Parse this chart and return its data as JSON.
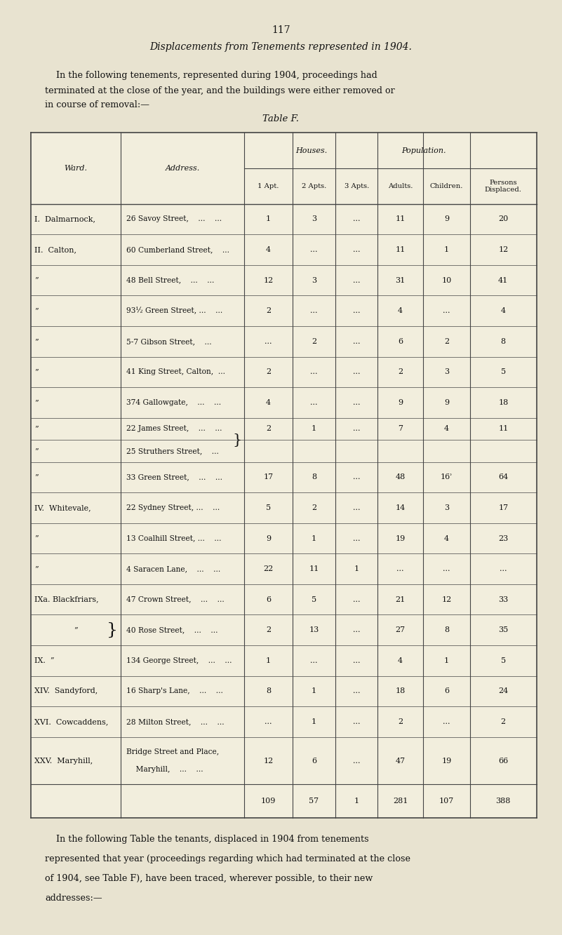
{
  "page_number": "117",
  "main_title": "Displacements from Tenements represented in 1904.",
  "intro_line1": "    In the following tenements, represented during 1904, proceedings had",
  "intro_line2": "terminated at the close of the year, and the buildings were either removed or",
  "intro_line3": "in course of removal:—",
  "table_title": "Table F.",
  "rows": [
    {
      "ward": "I.  Dalmarnock,",
      "address": "26 Savoy Street,    ...    ...",
      "apt1": "1",
      "apt2": "3",
      "apt3": "...",
      "adults": "11",
      "children": "9",
      "displaced": "20"
    },
    {
      "ward": "II.  Calton,",
      "address": "60 Cumberland Street,    ...",
      "apt1": "4",
      "apt2": "...",
      "apt3": "...",
      "adults": "11",
      "children": "1",
      "displaced": "12"
    },
    {
      "ward": "”",
      "address": "48 Bell Street,    ...    ...",
      "apt1": "12",
      "apt2": "3",
      "apt3": "...",
      "adults": "31",
      "children": "10",
      "displaced": "41"
    },
    {
      "ward": "”",
      "address": "93½ Green Street, ...    ...",
      "apt1": "2",
      "apt2": "...",
      "apt3": "...",
      "adults": "4",
      "children": "...",
      "displaced": "4"
    },
    {
      "ward": "”",
      "address": "5-7 Gibson Street,    ...",
      "apt1": "...",
      "apt2": "2",
      "apt3": "...",
      "adults": "6",
      "children": "2",
      "displaced": "8"
    },
    {
      "ward": "”",
      "address": "41 King Street, Calton,  ...",
      "apt1": "2",
      "apt2": "...",
      "apt3": "...",
      "adults": "2",
      "children": "3",
      "displaced": "5"
    },
    {
      "ward": "”",
      "address": "374 Gallowgate,    ...    ...",
      "apt1": "4",
      "apt2": "...",
      "apt3": "...",
      "adults": "9",
      "children": "9",
      "displaced": "18"
    },
    {
      "ward": "”",
      "address": "22 James Street,    ...    ...",
      "apt1": "2",
      "apt2": "1",
      "apt3": "...",
      "adults": "7",
      "children": "4",
      "displaced": "11",
      "brace_top": true
    },
    {
      "ward": "”",
      "address": "25 Struthers Street,    ...",
      "apt1": "",
      "apt2": "",
      "apt3": "",
      "adults": "",
      "children": "",
      "displaced": "",
      "brace_bot": true
    },
    {
      "ward": "”",
      "address": "33 Green Street,    ...    ...",
      "apt1": "17",
      "apt2": "8",
      "apt3": "...",
      "adults": "48",
      "children": "16ʾ",
      "displaced": "64"
    },
    {
      "ward": "IV.  Whitevale,",
      "address": "22 Sydney Street, ...    ...",
      "apt1": "5",
      "apt2": "2",
      "apt3": "...",
      "adults": "14",
      "children": "3",
      "displaced": "17"
    },
    {
      "ward": "”",
      "address": "13 Coalhill Street, ...    ...",
      "apt1": "9",
      "apt2": "1",
      "apt3": "...",
      "adults": "19",
      "children": "4",
      "displaced": "23"
    },
    {
      "ward": "”",
      "address": "4 Saracen Lane,    ...    ...",
      "apt1": "22",
      "apt2": "11",
      "apt3": "1",
      "adults": "...",
      "children": "...",
      "displaced": "..."
    },
    {
      "ward": "IXa. Blackfriars,",
      "address": "47 Crown Street,    ...    ...",
      "apt1": "6",
      "apt2": "5",
      "apt3": "...",
      "adults": "21",
      "children": "12",
      "displaced": "33",
      "ward_brace": "top"
    },
    {
      "ward": "”",
      "address": "40 Rose Street,    ...    ...",
      "apt1": "2",
      "apt2": "13",
      "apt3": "...",
      "adults": "27",
      "children": "8",
      "displaced": "35",
      "ward_brace": "mid"
    },
    {
      "ward": "IX.  ”",
      "address": "134 George Street,    ...    ...",
      "apt1": "1",
      "apt2": "...",
      "apt3": "...",
      "adults": "4",
      "children": "1",
      "displaced": "5",
      "ward_brace": "bot"
    },
    {
      "ward": "XIV.  Sandyford,",
      "address": "16 Sharp's Lane,    ...    ...",
      "apt1": "8",
      "apt2": "1",
      "apt3": "...",
      "adults": "18",
      "children": "6",
      "displaced": "24"
    },
    {
      "ward": "XVI.  Cowcaddens,",
      "address": "28 Milton Street,    ...    ...",
      "apt1": "...",
      "apt2": "1",
      "apt3": "...",
      "adults": "2",
      "children": "...",
      "displaced": "2"
    },
    {
      "ward": "XXV.  Maryhill,",
      "address": "Bridge Street and Place,\n    Maryhill,    ...    ...",
      "apt1": "12",
      "apt2": "6",
      "apt3": "...",
      "adults": "47",
      "children": "19",
      "displaced": "66",
      "tall": true
    }
  ],
  "totals": {
    "apt1": "109",
    "apt2": "57",
    "apt3": "1",
    "adults": "281",
    "children": "107",
    "displaced": "388"
  },
  "footer_line1": "    In the following Table the tenants, displaced in 1904 from tenements",
  "footer_line2": "represented that year (proceedings regarding which had terminated at the close",
  "footer_line3": "of 1904, see Table F), have been traced, wherever possible, to their new",
  "footer_line4": "addresses:—",
  "bg_color": "#e8e3d0",
  "table_bg": "#f0ece0",
  "text_color": "#111111",
  "line_color": "#444444"
}
